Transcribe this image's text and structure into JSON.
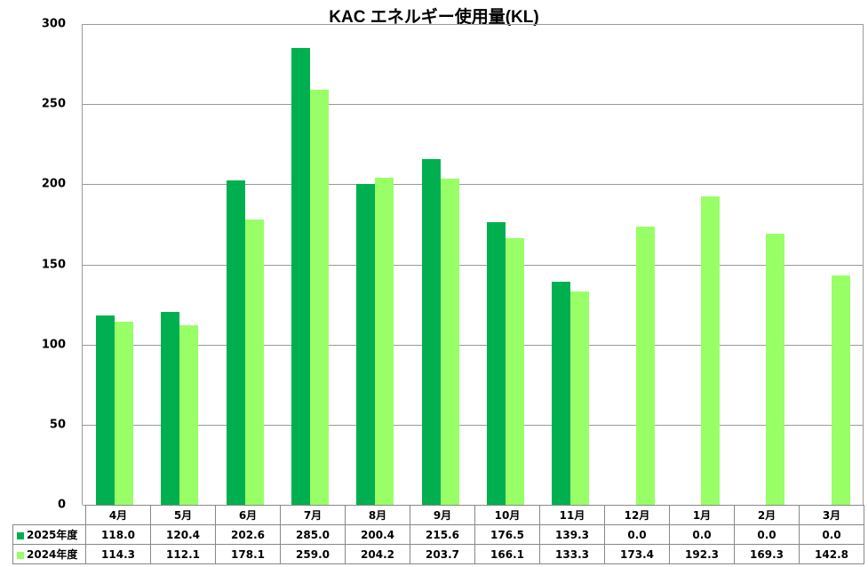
{
  "chart_data": {
    "type": "bar",
    "title": "KAC エネルギー使用量(KL)",
    "xlabel": "",
    "ylabel": "",
    "ylim": [
      0,
      300
    ],
    "yticks": [
      0,
      50,
      100,
      150,
      200,
      250,
      300
    ],
    "grid": true,
    "legend_position": "data-table",
    "categories": [
      "4月",
      "5月",
      "6月",
      "7月",
      "8月",
      "9月",
      "10月",
      "11月",
      "12月",
      "1月",
      "2月",
      "3月"
    ],
    "series": [
      {
        "name": "2025年度",
        "color": "#00b050",
        "values": [
          118.0,
          120.4,
          202.6,
          285.0,
          200.4,
          215.6,
          176.5,
          139.3,
          0.0,
          0.0,
          0.0,
          0.0
        ],
        "labels": [
          "118.0",
          "120.4",
          "202.6",
          "285.0",
          "200.4",
          "215.6",
          "176.5",
          "139.3",
          "0.0",
          "0.0",
          "0.0",
          "0.0"
        ]
      },
      {
        "name": "2024年度",
        "color": "#99ff66",
        "values": [
          114.3,
          112.1,
          178.1,
          259.0,
          204.2,
          203.7,
          166.1,
          133.3,
          173.4,
          192.3,
          169.3,
          142.8
        ],
        "labels": [
          "114.3",
          "112.1",
          "178.1",
          "259.0",
          "204.2",
          "203.7",
          "166.1",
          "133.3",
          "173.4",
          "192.3",
          "169.3",
          "142.8"
        ]
      }
    ]
  }
}
